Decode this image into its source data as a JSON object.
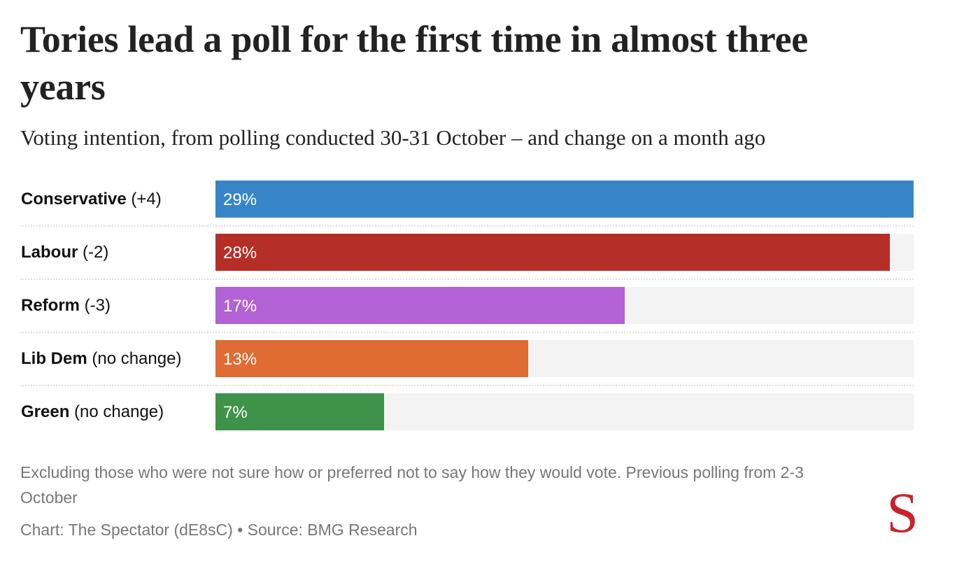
{
  "title": "Tories lead a poll for the first time in almost three years",
  "subtitle": "Voting intention, from polling conducted 30-31 October – and change on a month ago",
  "note": "Excluding those who were not sure how or preferred not to say how they would vote. Previous polling from 2-3 October",
  "source": "Chart: The Spectator (dE8sC) • Source: BMG Research",
  "logo": {
    "letter": "S",
    "icon": "spectator-logo-icon",
    "color": "#c8242b"
  },
  "chart_data": {
    "type": "bar",
    "orientation": "horizontal",
    "title": "Tories lead a poll for the first time in almost three years",
    "subtitle": "Voting intention, from polling conducted 30-31 October – and change on a month ago",
    "xlabel": "",
    "ylabel": "",
    "xlim": [
      0,
      29
    ],
    "grid": false,
    "legend": "none",
    "categories": [
      "Conservative",
      "Labour",
      "Reform",
      "Lib Dem",
      "Green"
    ],
    "changes": [
      "(+4)",
      "(-2)",
      "(-3)",
      "(no change)",
      "(no change)"
    ],
    "values": [
      29,
      28,
      17,
      13,
      7
    ],
    "value_labels": [
      "29%",
      "28%",
      "17%",
      "13%",
      "7%"
    ],
    "colors": [
      "#3785c8",
      "#b52e27",
      "#b262d4",
      "#e06b33",
      "#3e924a"
    ],
    "track_color": "#f3f3f3"
  }
}
